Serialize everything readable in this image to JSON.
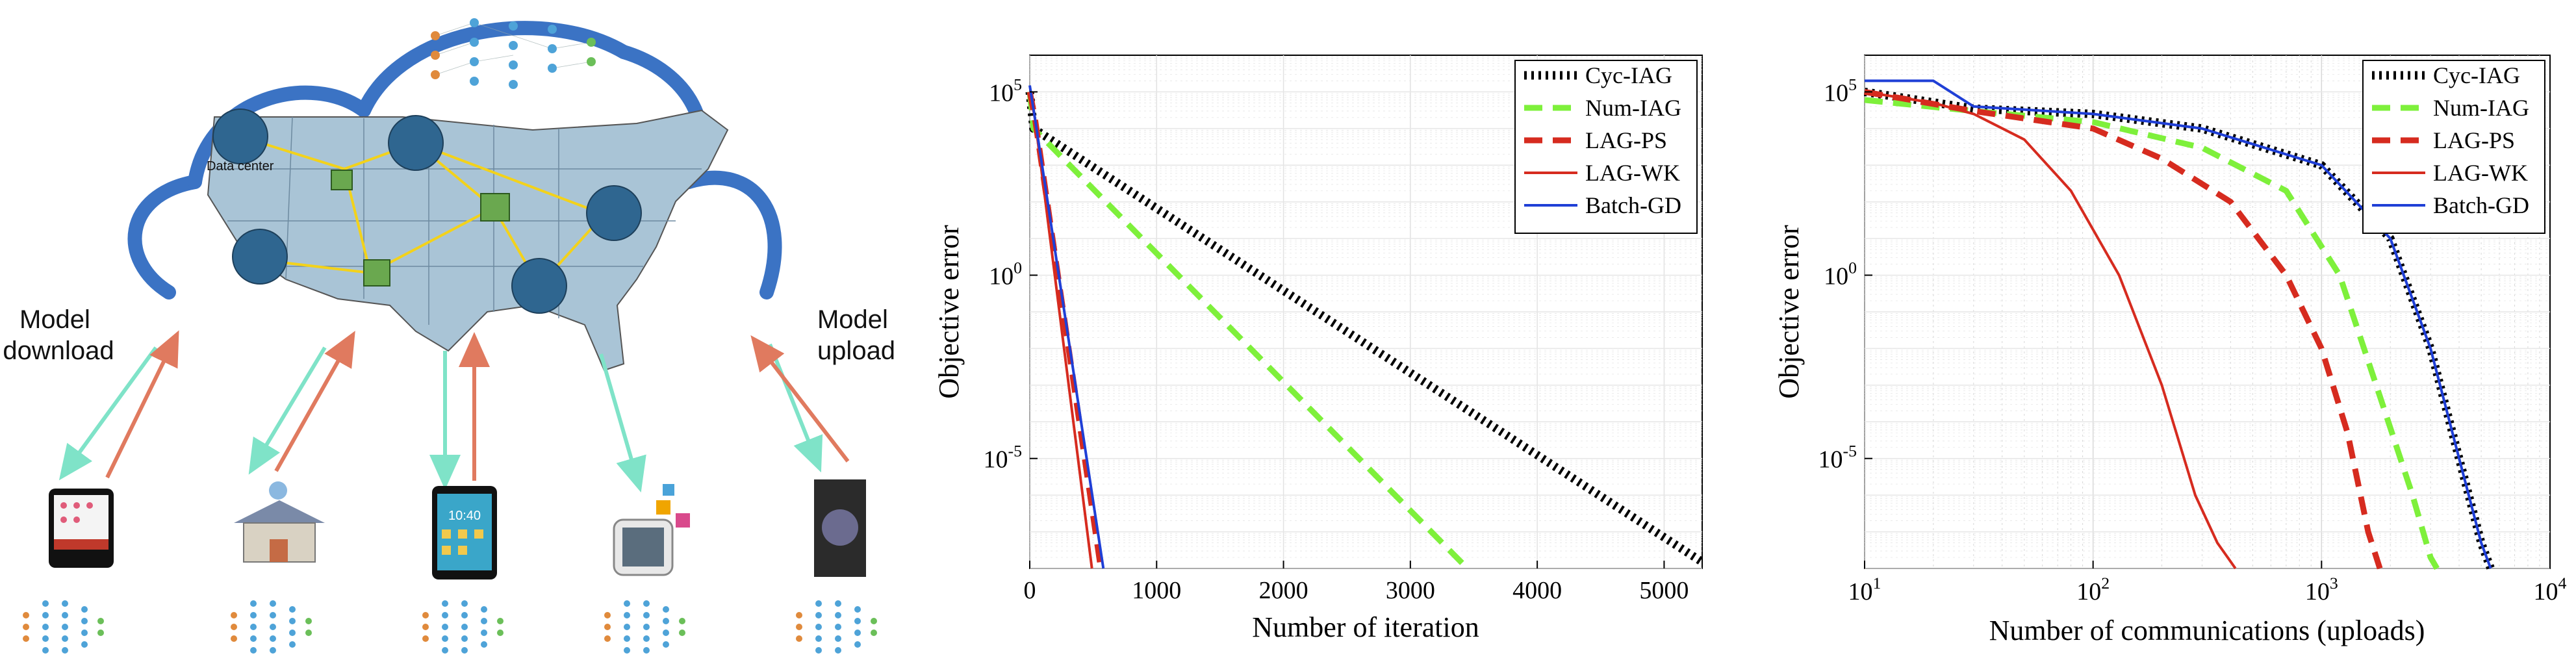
{
  "diagram": {
    "data_center_label": "Data center",
    "left_caption": [
      "Model",
      "download"
    ],
    "right_caption": [
      "Model",
      "upload"
    ],
    "phone_clock": "10:40",
    "colors": {
      "download": "#7fe3c8",
      "upload": "#e07a5f",
      "cloud": "#3b73c4",
      "map": "#a9c4d6",
      "hub": "#2f6690",
      "storage": "#6aa84f"
    },
    "icons": [
      "cloud-icon",
      "us-map-icon",
      "neural-network-icon",
      "tablet-icon",
      "smart-home-icon",
      "smartphone-icon",
      "smartwatch-icon",
      "photo-device-icon"
    ]
  },
  "chart_data": [
    {
      "type": "line",
      "xlabel": "Number of iteration",
      "ylabel": "Objective error",
      "xscale": "linear",
      "yscale": "log",
      "xlim": [
        0,
        5300
      ],
      "ylim": [
        1e-08,
        1000000.0
      ],
      "xticks": [
        0,
        1000,
        2000,
        3000,
        4000,
        5000
      ],
      "xtick_labels": [
        "0",
        "1000",
        "2000",
        "3000",
        "4000",
        "5000"
      ],
      "yticks": [
        100000,
        1,
        1e-05
      ],
      "ytick_labels": [
        [
          "10",
          "5"
        ],
        [
          "10",
          "0"
        ],
        [
          "10",
          "-5"
        ]
      ],
      "grid": true,
      "legend_position": "top-right",
      "series": [
        {
          "name": "Cyc-IAG",
          "color": "#000000",
          "dash": "dotted",
          "x": [
            0,
            30,
            5300
          ],
          "y": [
            100000,
            10000,
            1.5e-08
          ]
        },
        {
          "name": "Num-IAG",
          "color": "#7ef03b",
          "dash": "dashed",
          "x": [
            0,
            30,
            3450
          ],
          "y": [
            100000,
            10000,
            1e-08
          ]
        },
        {
          "name": "LAG-PS",
          "color": "#d62b1f",
          "dash": "dashed",
          "x": [
            0,
            40,
            560
          ],
          "y": [
            100000,
            20000,
            1e-08
          ]
        },
        {
          "name": "LAG-WK",
          "color": "#d62b1f",
          "dash": "solid",
          "x": [
            0,
            40,
            490
          ],
          "y": [
            100000,
            20000,
            1e-08
          ]
        },
        {
          "name": "Batch-GD",
          "color": "#1f3fd6",
          "dash": "solid",
          "x": [
            0,
            40,
            580
          ],
          "y": [
            150000,
            20000,
            1e-08
          ]
        }
      ]
    },
    {
      "type": "line",
      "xlabel": "Number of communications (uploads)",
      "ylabel": "Objective error",
      "xscale": "log",
      "yscale": "log",
      "xlim": [
        10,
        10000
      ],
      "ylim": [
        1e-08,
        1000000.0
      ],
      "xticks": [
        10,
        100,
        1000,
        10000
      ],
      "xtick_labels": [
        [
          "10",
          "1"
        ],
        [
          "10",
          "2"
        ],
        [
          "10",
          "3"
        ],
        [
          "10",
          "4"
        ]
      ],
      "yticks": [
        100000,
        1,
        1e-05
      ],
      "ytick_labels": [
        [
          "10",
          "5"
        ],
        [
          "10",
          "0"
        ],
        [
          "10",
          "-5"
        ]
      ],
      "grid": true,
      "legend_position": "top-right",
      "series": [
        {
          "name": "Cyc-IAG",
          "color": "#000000",
          "dash": "dotted",
          "x": [
            10,
            30,
            100,
            300,
            1000,
            2000,
            3000,
            4000,
            5000,
            5500
          ],
          "y": [
            100000,
            35000,
            25000,
            10000,
            1000,
            10,
            0.01,
            1e-05,
            5e-08,
            1e-08
          ]
        },
        {
          "name": "Num-IAG",
          "color": "#7ef03b",
          "dash": "dashed",
          "x": [
            10,
            30,
            100,
            300,
            700,
            1200,
            1800,
            2500,
            3000,
            3200
          ],
          "y": [
            60000,
            30000,
            15000,
            3000,
            200,
            1,
            0.0005,
            1e-06,
            2e-08,
            1e-08
          ]
        },
        {
          "name": "LAG-PS",
          "color": "#d62b1f",
          "dash": "dashed",
          "x": [
            10,
            30,
            100,
            200,
            400,
            700,
            1000,
            1300,
            1600,
            1800
          ],
          "y": [
            100000,
            30000,
            10000,
            1500,
            100,
            1,
            0.01,
            5e-05,
            1e-07,
            1e-08
          ]
        },
        {
          "name": "LAG-WK",
          "color": "#d62b1f",
          "dash": "solid",
          "x": [
            10,
            20,
            30,
            50,
            80,
            130,
            200,
            280,
            350,
            420
          ],
          "y": [
            100000,
            50000,
            25000,
            5000,
            200,
            1,
            0.001,
            1e-06,
            5e-08,
            1e-08
          ]
        },
        {
          "name": "Batch-GD",
          "color": "#1f3fd6",
          "dash": "solid",
          "x": [
            10,
            20,
            30,
            100,
            300,
            1000,
            2000,
            3000,
            4000,
            5000,
            5500
          ],
          "y": [
            200000,
            200000,
            40000,
            25000,
            10000,
            1000,
            10,
            0.01,
            1e-05,
            5e-08,
            1e-08
          ]
        }
      ]
    }
  ]
}
